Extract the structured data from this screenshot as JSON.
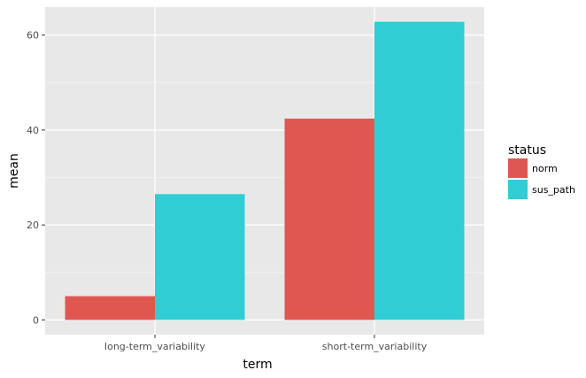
{
  "chart_data": {
    "type": "bar",
    "categories": [
      "long-term_variability",
      "short-term_variability"
    ],
    "series": [
      {
        "name": "norm",
        "values": [
          5.0,
          42.4
        ],
        "color": "#E05752"
      },
      {
        "name": "sus_path",
        "values": [
          26.5,
          62.8
        ],
        "color": "#30CDD5"
      }
    ],
    "xlabel": "term",
    "ylabel": "mean",
    "ylim": [
      -3.1,
      65.9
    ],
    "yticks": [
      0,
      20,
      40,
      60
    ],
    "grid": true,
    "background": "#E8E8E8",
    "legend": {
      "title": "status",
      "placement": "right"
    }
  }
}
